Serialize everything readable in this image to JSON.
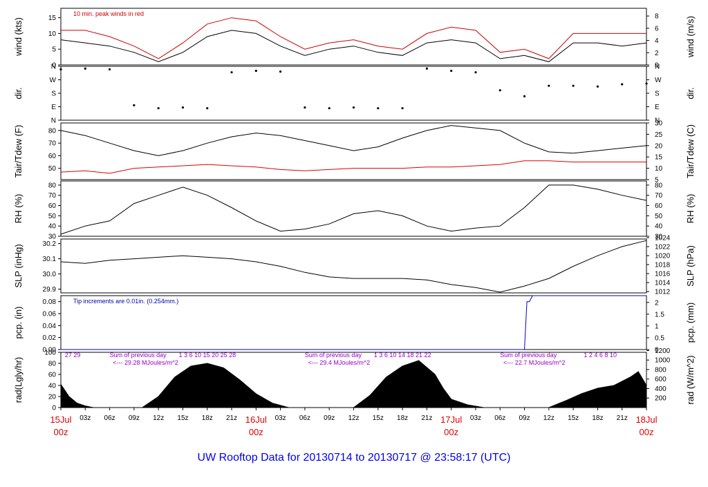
{
  "footer": {
    "title": "UW Rooftop Data for 20130714  to  20130717 @ 23:58:17  (UTC)",
    "title_color": "#0000ee"
  },
  "chart_data": [
    {
      "id": "wind",
      "type": "line",
      "ylabel_left": "wind (kts)",
      "ylabel_right": "wind (m/s)",
      "ylim": [
        0,
        18
      ],
      "yticks_left": [
        "0",
        "5",
        "10",
        "15"
      ],
      "yticks_left_values": [
        0,
        5,
        10,
        15
      ],
      "ylim_right": [
        0,
        9.26
      ],
      "yticks_right": [
        "0",
        "2",
        "4",
        "6",
        "8"
      ],
      "yticks_right_values": [
        0,
        2,
        4,
        6,
        8
      ],
      "annotation": "10 min. peak winds in red",
      "annotation_color": "#cc0000",
      "x_hours": [
        0,
        3,
        6,
        9,
        12,
        15,
        18,
        21,
        24,
        27,
        30,
        33,
        36,
        39,
        42,
        45,
        48,
        51,
        54,
        57,
        60,
        63,
        66,
        69,
        72
      ],
      "series": [
        {
          "name": "wind",
          "color": "#000000",
          "values": [
            8,
            7,
            6,
            4,
            1,
            4,
            9,
            11,
            10,
            6,
            3,
            5,
            6,
            4,
            3,
            7,
            8,
            7,
            2,
            3,
            1,
            7,
            7,
            6,
            7
          ]
        },
        {
          "name": "peak",
          "color": "#cc0000",
          "values": [
            11,
            11,
            9,
            6,
            2,
            7,
            13,
            15,
            14,
            9,
            5,
            7,
            8,
            6,
            5,
            10,
            12,
            11,
            4,
            5,
            2,
            10,
            10,
            10,
            10
          ]
        }
      ]
    },
    {
      "id": "dir",
      "type": "scatter",
      "ylabel_left": "dir.",
      "ylabel_right": "dir.",
      "yticks_left": [
        "N",
        "E",
        "S",
        "W",
        "N"
      ],
      "yticks_right": [
        "N",
        "E",
        "S",
        "W",
        "N"
      ],
      "ylim": [
        0,
        360
      ],
      "yticks_values": [
        0,
        90,
        180,
        270,
        360
      ],
      "x_hours": [
        0,
        3,
        6,
        9,
        12,
        15,
        18,
        21,
        24,
        27,
        30,
        33,
        36,
        39,
        42,
        45,
        48,
        51,
        54,
        57,
        60,
        63,
        66,
        69,
        72
      ],
      "series": [
        {
          "name": "direction",
          "color": "#000000",
          "values": [
            340,
            345,
            340,
            100,
            80,
            85,
            80,
            320,
            330,
            325,
            85,
            80,
            85,
            80,
            80,
            345,
            330,
            320,
            200,
            160,
            230,
            230,
            225,
            240,
            245
          ]
        }
      ]
    },
    {
      "id": "temp",
      "type": "line",
      "ylabel_left": "Tair/Tdew (F)",
      "ylabel_right": "Tair/Tdew (C)",
      "ylim": [
        41,
        86
      ],
      "yticks_left": [
        "50",
        "60",
        "70",
        "80"
      ],
      "yticks_left_values": [
        50,
        60,
        70,
        80
      ],
      "ylim_right": [
        5,
        30
      ],
      "yticks_right": [
        "5",
        "10",
        "15",
        "20",
        "25",
        "30"
      ],
      "yticks_right_values": [
        5,
        10,
        15,
        20,
        25,
        30
      ],
      "x_hours": [
        0,
        3,
        6,
        9,
        12,
        15,
        18,
        21,
        24,
        27,
        30,
        33,
        36,
        39,
        42,
        45,
        48,
        51,
        54,
        57,
        60,
        63,
        66,
        69,
        72
      ],
      "series": [
        {
          "name": "Tair",
          "color": "#000000",
          "values": [
            80,
            76,
            70,
            64,
            60,
            64,
            70,
            75,
            78,
            76,
            72,
            68,
            64,
            67,
            74,
            80,
            84,
            82,
            80,
            70,
            63,
            62,
            64,
            66,
            68
          ]
        },
        {
          "name": "Tdew",
          "color": "#dd0000",
          "values": [
            47,
            48,
            46,
            50,
            51,
            52,
            53,
            52,
            51,
            49,
            48,
            49,
            50,
            50,
            50,
            51,
            51,
            52,
            53,
            56,
            56,
            55,
            55,
            55,
            55
          ]
        }
      ]
    },
    {
      "id": "rh",
      "type": "line",
      "ylabel_left": "RH (%)",
      "ylabel_right": "RH (%)",
      "ylim": [
        30,
        84
      ],
      "yticks_left": [
        "30",
        "40",
        "50",
        "60",
        "70",
        "80"
      ],
      "yticks_left_values": [
        30,
        40,
        50,
        60,
        70,
        80
      ],
      "yticks_right": [
        "30",
        "40",
        "50",
        "60",
        "70",
        "80"
      ],
      "x_hours": [
        0,
        3,
        6,
        9,
        12,
        15,
        18,
        21,
        24,
        27,
        30,
        33,
        36,
        39,
        42,
        45,
        48,
        51,
        54,
        57,
        60,
        63,
        66,
        69,
        72
      ],
      "series": [
        {
          "name": "RH",
          "color": "#000000",
          "values": [
            32,
            40,
            45,
            62,
            70,
            78,
            70,
            58,
            45,
            35,
            37,
            42,
            52,
            55,
            50,
            40,
            35,
            38,
            40,
            58,
            80,
            80,
            76,
            70,
            65
          ]
        }
      ]
    },
    {
      "id": "slp",
      "type": "line",
      "ylabel_left": "SLP (inHg)",
      "ylabel_right": "SLP (hPa)",
      "ylim": [
        29.875,
        30.23
      ],
      "yticks_left": [
        "29.9",
        "30.0",
        "30.1",
        "30.2"
      ],
      "yticks_left_values": [
        29.9,
        30.0,
        30.1,
        30.2
      ],
      "ylim_right": [
        1011.7,
        1023.7
      ],
      "yticks_right": [
        "1012",
        "1014",
        "1016",
        "1018",
        "1020",
        "1022",
        "1024"
      ],
      "yticks_right_values": [
        1012,
        1014,
        1016,
        1018,
        1020,
        1022,
        1024
      ],
      "x_hours": [
        0,
        3,
        6,
        9,
        12,
        15,
        18,
        21,
        24,
        27,
        30,
        33,
        36,
        39,
        42,
        45,
        48,
        51,
        54,
        57,
        60,
        63,
        66,
        69,
        72
      ],
      "series": [
        {
          "name": "SLP",
          "color": "#000000",
          "values": [
            30.08,
            30.07,
            30.09,
            30.1,
            30.11,
            30.12,
            30.11,
            30.1,
            30.08,
            30.05,
            30.01,
            29.98,
            29.97,
            29.97,
            29.97,
            29.96,
            29.93,
            29.91,
            29.88,
            29.92,
            29.97,
            30.05,
            30.12,
            30.18,
            30.22
          ]
        }
      ]
    },
    {
      "id": "pcp",
      "type": "line",
      "ylabel_left": "pcp. (in)",
      "ylabel_right": "pcp. (mm)",
      "ylim": [
        0,
        0.09
      ],
      "yticks_left": [
        "0.00",
        "0.02",
        "0.04",
        "0.06",
        "0.08"
      ],
      "yticks_left_values": [
        0,
        0.02,
        0.04,
        0.06,
        0.08
      ],
      "yticks_right": [
        "0",
        "0.5",
        "1",
        "1.5",
        "2"
      ],
      "yticks_right_values": [
        0,
        0.5,
        1,
        1.5,
        2
      ],
      "ylim_right": [
        0,
        2.286
      ],
      "annotation": "Tip increments are 0.01in. (0.254mm.)",
      "annotation_color": "#0000aa",
      "x_hours": [
        0,
        57.0,
        57.3,
        57.6,
        58.0,
        72
      ],
      "series": [
        {
          "name": "pcp",
          "color": "#0000cc",
          "values": [
            0,
            0,
            0.08,
            0.08,
            0.09,
            0.09
          ]
        }
      ]
    },
    {
      "id": "rad",
      "type": "area",
      "ylabel_left": "rad(Lgly/hr)",
      "ylabel_right": "rad (W/m^2)",
      "ylim": [
        0,
        100
      ],
      "yticks_left": [
        "0",
        "20",
        "40",
        "60",
        "80",
        "100"
      ],
      "yticks_left_values": [
        0,
        20,
        40,
        60,
        80,
        100
      ],
      "ylim_right": [
        0,
        1163
      ],
      "yticks_right": [
        "200",
        "400",
        "600",
        "800",
        "1000",
        "1200"
      ],
      "yticks_right_values": [
        200,
        400,
        600,
        800,
        1000,
        1200
      ],
      "top_labels": [
        {
          "text": "27   29",
          "hour": 0.5
        },
        {
          "text": "Sum of previous day",
          "hour": 6
        },
        {
          "text": "<--- 29.28 MJoules/m^2",
          "hour": 6.4
        },
        {
          "text": "1   3    6   10  15  20   25   28",
          "hour": 14.5
        },
        {
          "text": "Sum of previous day",
          "hour": 30
        },
        {
          "text": "<--- 29.4 MJoules/m^2",
          "hour": 30.4
        },
        {
          "text": "1   3    6   10  14  18    21    22",
          "hour": 38.5
        },
        {
          "text": "Sum of previous day",
          "hour": 54
        },
        {
          "text": "<--- 22.7 MJoules/m^2",
          "hour": 54.4
        },
        {
          "text": "1    2      4    6   8   10",
          "hour": 64.3
        }
      ],
      "label_color": "#9900cc",
      "x_hours": [
        0,
        1,
        2,
        3,
        4,
        10,
        12,
        14,
        16,
        18,
        20,
        22,
        24,
        26,
        28,
        36,
        38,
        40,
        42,
        44,
        46,
        47,
        48,
        50,
        52,
        60,
        62,
        64,
        66,
        68,
        70,
        71,
        72
      ],
      "series": [
        {
          "name": "rad",
          "color": "#000000",
          "values": [
            42,
            20,
            8,
            3,
            0,
            0,
            20,
            55,
            75,
            80,
            72,
            50,
            25,
            8,
            0,
            0,
            22,
            55,
            75,
            85,
            60,
            35,
            15,
            5,
            0,
            0,
            12,
            25,
            35,
            40,
            55,
            65,
            40
          ]
        }
      ]
    }
  ],
  "x_axis": {
    "labels": [
      "03z",
      "06z",
      "09z",
      "12z",
      "15z",
      "18z",
      "21z",
      "03z",
      "06z",
      "09z",
      "12z",
      "15z",
      "18z",
      "21z",
      "03z",
      "06z",
      "09z",
      "12z",
      "15z",
      "18z",
      "21z"
    ],
    "label_hours": [
      3,
      6,
      9,
      12,
      15,
      18,
      21,
      27,
      30,
      33,
      36,
      39,
      42,
      45,
      51,
      54,
      57,
      60,
      63,
      66,
      69
    ],
    "day_labels": [
      {
        "top": "15Jul",
        "bottom": "00z",
        "hour": 0
      },
      {
        "top": "16Jul",
        "bottom": "00z",
        "hour": 24
      },
      {
        "top": "17Jul",
        "bottom": "00z",
        "hour": 48
      },
      {
        "top": "18Jul",
        "bottom": "00z",
        "hour": 72
      }
    ],
    "day_label_color": "#dd0000"
  }
}
